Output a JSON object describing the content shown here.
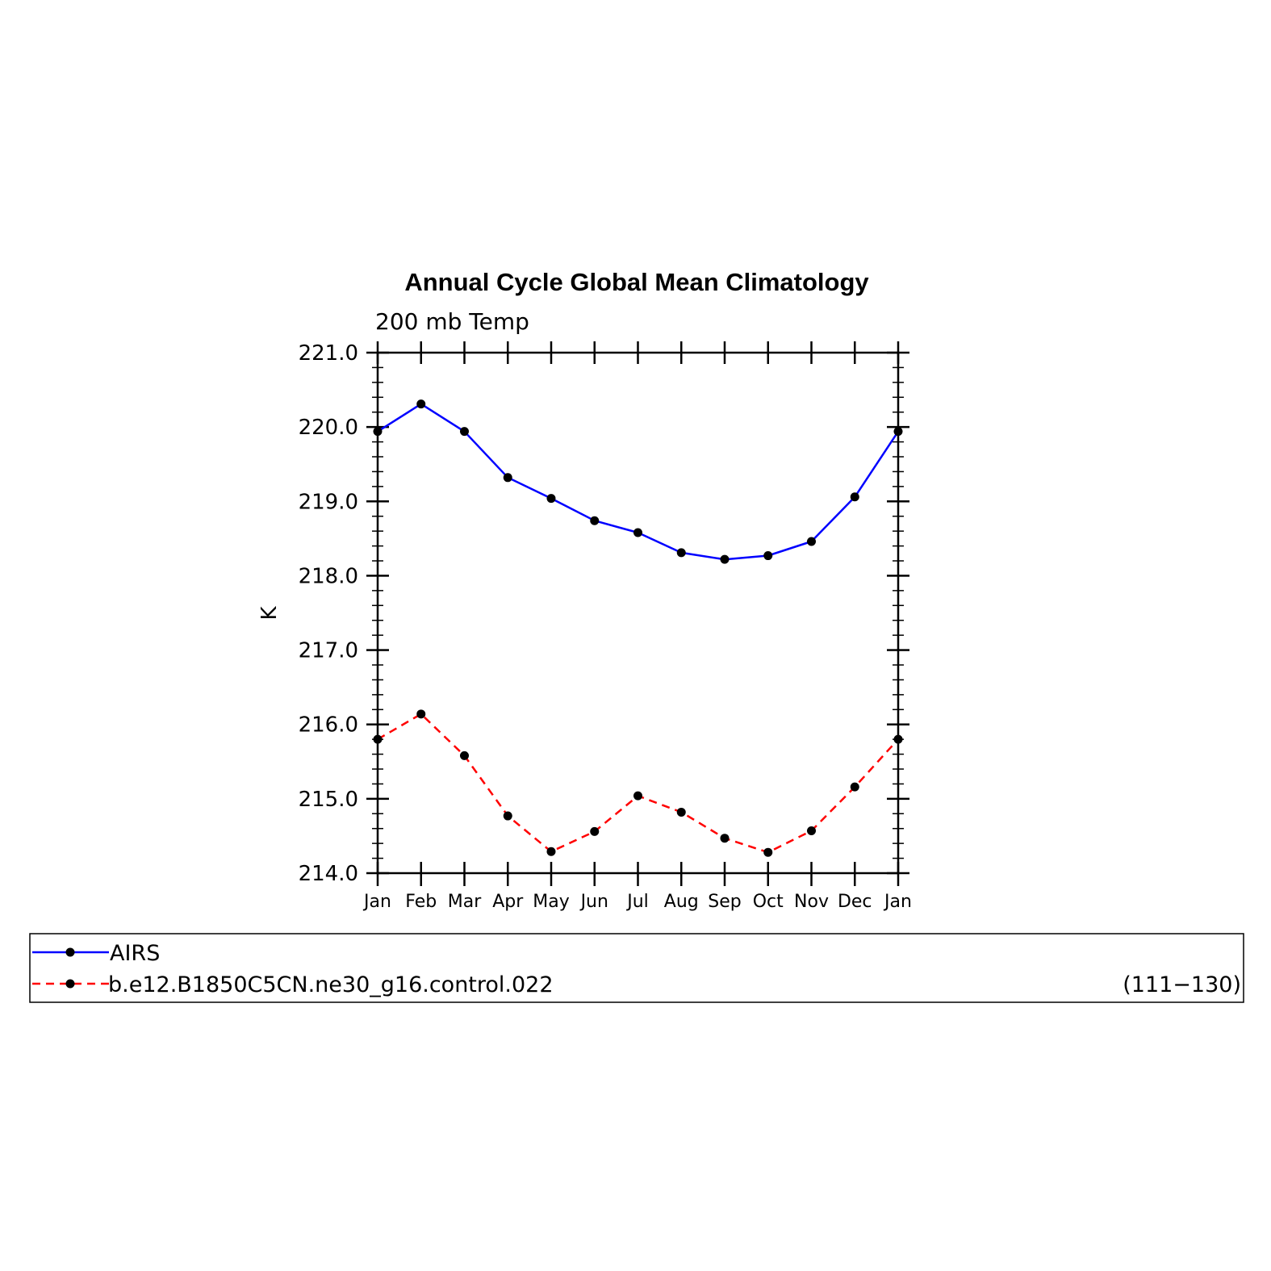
{
  "chart_data": {
    "type": "line",
    "title": "Annual Cycle Global Mean Climatology",
    "subtitle": "200 mb Temp",
    "ylabel": "K",
    "xlabel": "",
    "categories": [
      "Jan",
      "Feb",
      "Mar",
      "Apr",
      "May",
      "Jun",
      "Jul",
      "Aug",
      "Sep",
      "Oct",
      "Nov",
      "Dec",
      "Jan"
    ],
    "ylim": [
      214.0,
      221.0
    ],
    "yticks": [
      "214.0",
      "215.0",
      "216.0",
      "217.0",
      "218.0",
      "219.0",
      "220.0",
      "221.0"
    ],
    "grid": false,
    "legend_position": "bottom",
    "series": [
      {
        "name": "AIRS",
        "color": "#0000ff",
        "dash": "solid",
        "values": [
          219.94,
          220.31,
          219.94,
          219.32,
          219.04,
          218.74,
          218.58,
          218.31,
          218.22,
          218.27,
          218.46,
          219.06,
          219.94
        ]
      },
      {
        "name": "b.e12.B1850C5CN.ne30_g16.control.022",
        "color": "#ff0000",
        "dash": "dashed",
        "values": [
          215.8,
          216.14,
          215.58,
          214.77,
          214.29,
          214.56,
          215.04,
          214.82,
          214.47,
          214.28,
          214.57,
          215.16,
          215.8
        ]
      }
    ],
    "legend_note": "(111−130)",
    "marker_color": "#000000"
  }
}
